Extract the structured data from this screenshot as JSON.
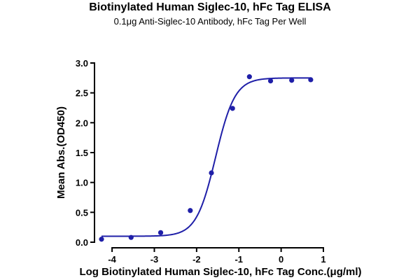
{
  "chart_data": {
    "type": "scatter",
    "title": "Biotinylated Human Siglec-10, hFc Tag ELISA",
    "subtitle": "0.1μg Anti-Siglec-10 Antibody, hFc Tag Per Well",
    "xlabel": "Log Biotinylated Human Siglec-10, hFc Tag Conc.(μg/ml)",
    "ylabel": "Mean Abs.(OD450)",
    "xlim": [
      -4.3,
      1.0
    ],
    "ylim": [
      0,
      3.0
    ],
    "x_ticks": [
      -4,
      -3,
      -2,
      -1,
      0,
      1
    ],
    "x_tick_labels": [
      "-4",
      "-3",
      "-2",
      "-1",
      "0",
      "1"
    ],
    "y_ticks": [
      0,
      0.5,
      1.0,
      1.5,
      2.0,
      2.5,
      3.0
    ],
    "y_tick_labels": [
      "0.0",
      "0.5",
      "1.0",
      "1.5",
      "2.0",
      "2.5",
      "3.0"
    ],
    "grid": false,
    "series": [
      {
        "color": "#1f1fa8",
        "x": [
          -4.25,
          -3.55,
          -2.85,
          -2.15,
          -1.65,
          -1.15,
          -0.75,
          -0.25,
          0.25,
          0.7
        ],
        "y": [
          0.05,
          0.08,
          0.16,
          0.53,
          1.16,
          2.24,
          2.77,
          2.7,
          2.71,
          2.72
        ],
        "fit": {
          "model": "4PL",
          "bottom": 0.1,
          "top": 2.75,
          "log_ec50": -1.55,
          "hill": 1.9
        }
      }
    ]
  }
}
